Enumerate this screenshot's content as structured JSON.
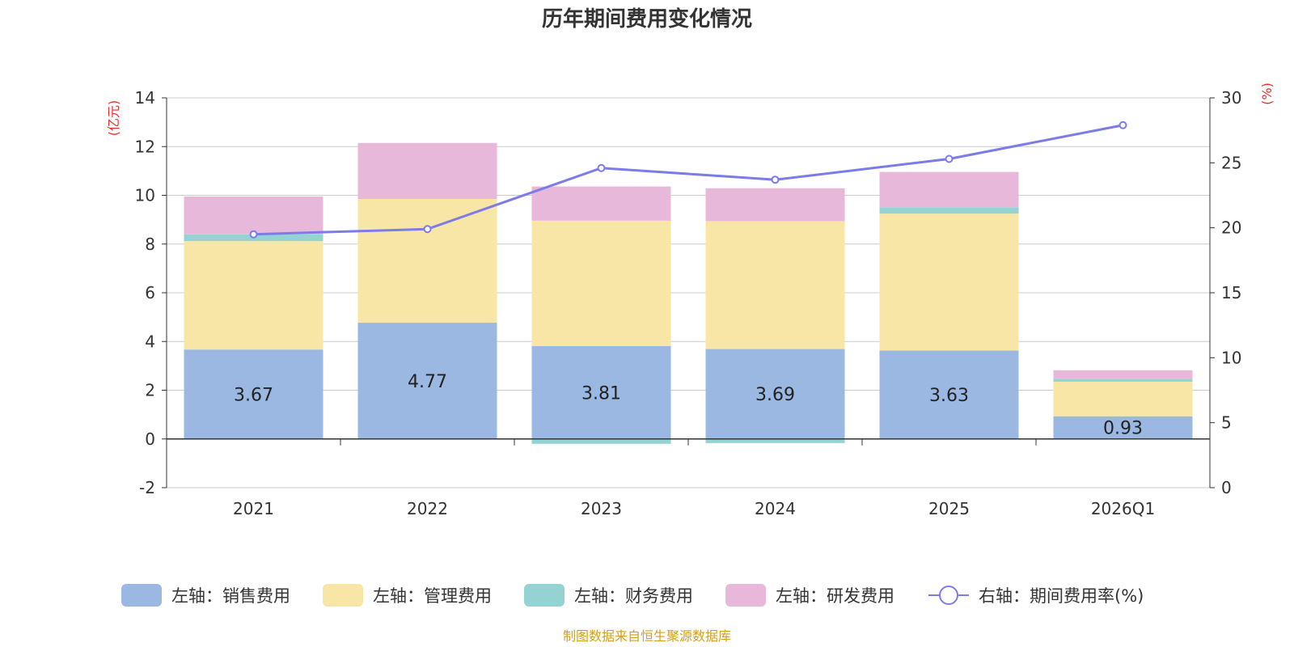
{
  "chart_data": {
    "type": "bar",
    "title": "历年期间费用变化情况",
    "categories": [
      "2021",
      "2022",
      "2023",
      "2024",
      "2025",
      "2026Q1"
    ],
    "left_axis": {
      "unit": "(亿元)",
      "ylim": [
        -2,
        14
      ],
      "ticks": [
        14,
        12,
        10,
        8,
        6,
        4,
        2,
        0,
        -2
      ]
    },
    "right_axis": {
      "unit": "(%)",
      "ylim": [
        0,
        30
      ],
      "ticks": [
        30,
        25,
        20,
        15,
        10,
        5,
        0
      ]
    },
    "series": [
      {
        "name": "左轴：销售费用",
        "axis": "left",
        "kind": "bar",
        "color": "#9bb8e2",
        "values": [
          3.67,
          4.77,
          3.81,
          3.69,
          3.63,
          0.93
        ],
        "labels": [
          "3.67",
          "4.77",
          "3.81",
          "3.69",
          "3.63",
          "0.93"
        ]
      },
      {
        "name": "左轴：管理费用",
        "axis": "left",
        "kind": "bar",
        "color": "#f7e6a6",
        "values": [
          4.45,
          5.08,
          5.15,
          5.25,
          5.62,
          1.42
        ]
      },
      {
        "name": "左轴：财务费用",
        "axis": "left",
        "kind": "bar",
        "color": "#95d3d3",
        "values": [
          0.28,
          0.0,
          -0.2,
          -0.17,
          0.26,
          0.12
        ]
      },
      {
        "name": "左轴：研发费用",
        "axis": "left",
        "kind": "bar",
        "color": "#e8b8da",
        "values": [
          1.55,
          2.3,
          1.4,
          1.35,
          1.45,
          0.35
        ]
      },
      {
        "name": "右轴：期间费用率(%)",
        "axis": "right",
        "kind": "line",
        "color": "#7b7bea",
        "values": [
          19.5,
          19.9,
          24.6,
          23.7,
          25.3,
          27.9
        ]
      }
    ],
    "colors": {
      "title": "#333333",
      "axis": "#333333",
      "grid": "#cccccc",
      "unit": "#e8302a",
      "source": "#d4a017"
    }
  },
  "source_text": "制图数据来自恒生聚源数据库"
}
